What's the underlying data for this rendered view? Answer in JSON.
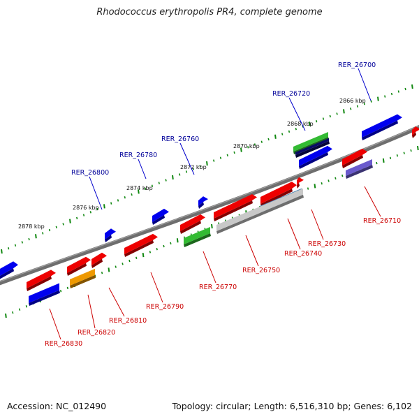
{
  "title": "Rhodococcus erythropolis PR4, complete genome",
  "footer": {
    "accession": "Accession: NC_012490",
    "summary": "Topology: circular; Length: 6,516,310 bp; Genes: 6,102"
  },
  "scale_labels": [
    "2866 kbp",
    "2868 kbp",
    "2870 kbp",
    "2872 kbp",
    "2874 kbp",
    "2876 kbp",
    "2878 kbp"
  ],
  "top_gene_labels": [
    "RER_26700",
    "RER_26720",
    "RER_26760",
    "RER_26780",
    "RER_26800"
  ],
  "bottom_gene_labels": [
    "RER_26710",
    "RER_26730",
    "RER_26740",
    "RER_26750",
    "RER_26770",
    "RER_26790",
    "RER_26810",
    "RER_26820",
    "RER_26830"
  ],
  "colors": {
    "forward_strand": "#0000ee",
    "reverse_strand": "#ee0000",
    "green": "#33bb33",
    "orange": "#ee9900",
    "gray": "#c8c8c8",
    "steel_blue": "#4682b4",
    "navy": "#0a0a66",
    "slate_blue": "#6a5acd",
    "label_top": "#000099",
    "label_bottom": "#cc0000",
    "tick": "#118811"
  }
}
